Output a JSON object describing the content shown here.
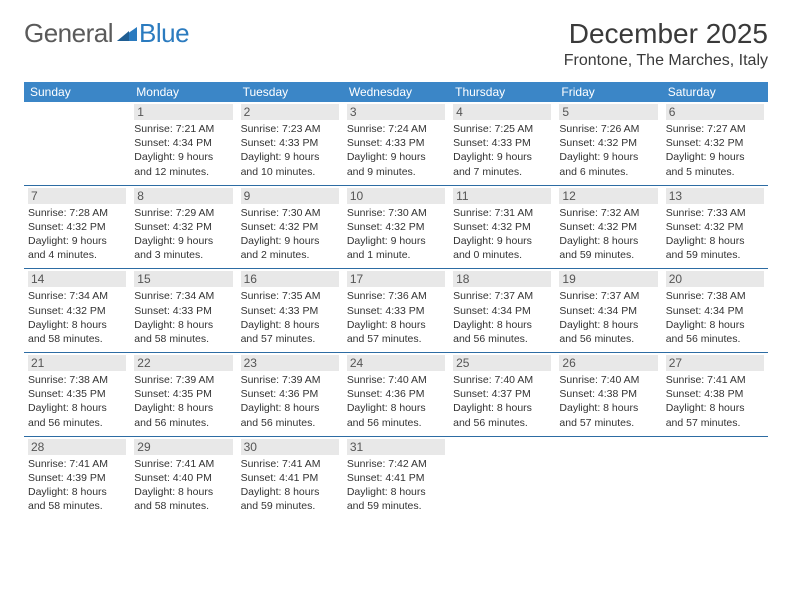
{
  "logo": {
    "part1": "General",
    "part2": "Blue"
  },
  "title": {
    "month": "December 2025",
    "location": "Frontone, The Marches, Italy"
  },
  "colors": {
    "header_bg": "#3b86c7",
    "header_text": "#ffffff",
    "divider": "#2d6ca3",
    "daynum_bg": "#e8e8e8",
    "text": "#333333",
    "logo_gray": "#5a5a5a",
    "logo_blue": "#2b7bbf"
  },
  "dow": [
    "Sunday",
    "Monday",
    "Tuesday",
    "Wednesday",
    "Thursday",
    "Friday",
    "Saturday"
  ],
  "start_offset": 1,
  "days": [
    {
      "n": 1,
      "sr": "7:21 AM",
      "ss": "4:34 PM",
      "dl": "9 hours and 12 minutes."
    },
    {
      "n": 2,
      "sr": "7:23 AM",
      "ss": "4:33 PM",
      "dl": "9 hours and 10 minutes."
    },
    {
      "n": 3,
      "sr": "7:24 AM",
      "ss": "4:33 PM",
      "dl": "9 hours and 9 minutes."
    },
    {
      "n": 4,
      "sr": "7:25 AM",
      "ss": "4:33 PM",
      "dl": "9 hours and 7 minutes."
    },
    {
      "n": 5,
      "sr": "7:26 AM",
      "ss": "4:32 PM",
      "dl": "9 hours and 6 minutes."
    },
    {
      "n": 6,
      "sr": "7:27 AM",
      "ss": "4:32 PM",
      "dl": "9 hours and 5 minutes."
    },
    {
      "n": 7,
      "sr": "7:28 AM",
      "ss": "4:32 PM",
      "dl": "9 hours and 4 minutes."
    },
    {
      "n": 8,
      "sr": "7:29 AM",
      "ss": "4:32 PM",
      "dl": "9 hours and 3 minutes."
    },
    {
      "n": 9,
      "sr": "7:30 AM",
      "ss": "4:32 PM",
      "dl": "9 hours and 2 minutes."
    },
    {
      "n": 10,
      "sr": "7:30 AM",
      "ss": "4:32 PM",
      "dl": "9 hours and 1 minute."
    },
    {
      "n": 11,
      "sr": "7:31 AM",
      "ss": "4:32 PM",
      "dl": "9 hours and 0 minutes."
    },
    {
      "n": 12,
      "sr": "7:32 AM",
      "ss": "4:32 PM",
      "dl": "8 hours and 59 minutes."
    },
    {
      "n": 13,
      "sr": "7:33 AM",
      "ss": "4:32 PM",
      "dl": "8 hours and 59 minutes."
    },
    {
      "n": 14,
      "sr": "7:34 AM",
      "ss": "4:32 PM",
      "dl": "8 hours and 58 minutes."
    },
    {
      "n": 15,
      "sr": "7:34 AM",
      "ss": "4:33 PM",
      "dl": "8 hours and 58 minutes."
    },
    {
      "n": 16,
      "sr": "7:35 AM",
      "ss": "4:33 PM",
      "dl": "8 hours and 57 minutes."
    },
    {
      "n": 17,
      "sr": "7:36 AM",
      "ss": "4:33 PM",
      "dl": "8 hours and 57 minutes."
    },
    {
      "n": 18,
      "sr": "7:37 AM",
      "ss": "4:34 PM",
      "dl": "8 hours and 56 minutes."
    },
    {
      "n": 19,
      "sr": "7:37 AM",
      "ss": "4:34 PM",
      "dl": "8 hours and 56 minutes."
    },
    {
      "n": 20,
      "sr": "7:38 AM",
      "ss": "4:34 PM",
      "dl": "8 hours and 56 minutes."
    },
    {
      "n": 21,
      "sr": "7:38 AM",
      "ss": "4:35 PM",
      "dl": "8 hours and 56 minutes."
    },
    {
      "n": 22,
      "sr": "7:39 AM",
      "ss": "4:35 PM",
      "dl": "8 hours and 56 minutes."
    },
    {
      "n": 23,
      "sr": "7:39 AM",
      "ss": "4:36 PM",
      "dl": "8 hours and 56 minutes."
    },
    {
      "n": 24,
      "sr": "7:40 AM",
      "ss": "4:36 PM",
      "dl": "8 hours and 56 minutes."
    },
    {
      "n": 25,
      "sr": "7:40 AM",
      "ss": "4:37 PM",
      "dl": "8 hours and 56 minutes."
    },
    {
      "n": 26,
      "sr": "7:40 AM",
      "ss": "4:38 PM",
      "dl": "8 hours and 57 minutes."
    },
    {
      "n": 27,
      "sr": "7:41 AM",
      "ss": "4:38 PM",
      "dl": "8 hours and 57 minutes."
    },
    {
      "n": 28,
      "sr": "7:41 AM",
      "ss": "4:39 PM",
      "dl": "8 hours and 58 minutes."
    },
    {
      "n": 29,
      "sr": "7:41 AM",
      "ss": "4:40 PM",
      "dl": "8 hours and 58 minutes."
    },
    {
      "n": 30,
      "sr": "7:41 AM",
      "ss": "4:41 PM",
      "dl": "8 hours and 59 minutes."
    },
    {
      "n": 31,
      "sr": "7:42 AM",
      "ss": "4:41 PM",
      "dl": "8 hours and 59 minutes."
    }
  ],
  "labels": {
    "sunrise": "Sunrise:",
    "sunset": "Sunset:",
    "daylight": "Daylight:"
  }
}
